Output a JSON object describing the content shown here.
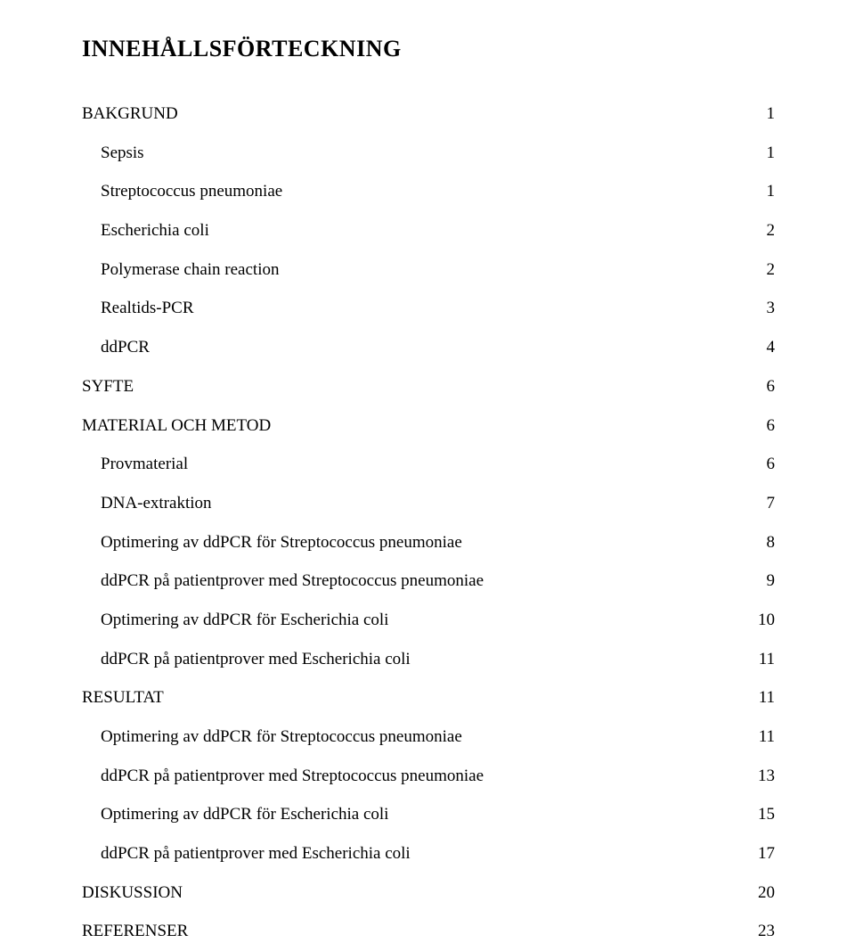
{
  "title": "INNEHÅLLSFÖRTECKNING",
  "toc": {
    "entries": [
      {
        "label": "BAKGRUND",
        "page": "1",
        "level": 1
      },
      {
        "label": "Sepsis",
        "page": "1",
        "level": 2
      },
      {
        "label": "Streptococcus pneumoniae",
        "page": "1",
        "level": 2
      },
      {
        "label": "Escherichia coli",
        "page": "2",
        "level": 2
      },
      {
        "label": "Polymerase chain reaction",
        "page": "2",
        "level": 2
      },
      {
        "label": "Realtids-PCR",
        "page": "3",
        "level": 2
      },
      {
        "label": "ddPCR",
        "page": "4",
        "level": 2
      },
      {
        "label": "SYFTE",
        "page": "6",
        "level": 1
      },
      {
        "label": "MATERIAL OCH METOD",
        "page": "6",
        "level": 1
      },
      {
        "label": "Provmaterial",
        "page": "6",
        "level": 2
      },
      {
        "label": "DNA-extraktion",
        "page": "7",
        "level": 2
      },
      {
        "label": "Optimering av ddPCR för Streptococcus pneumoniae",
        "page": "8",
        "level": 2
      },
      {
        "label": "ddPCR på patientprover med Streptococcus pneumoniae",
        "page": "9",
        "level": 2
      },
      {
        "label": "Optimering av ddPCR för Escherichia coli",
        "page": "10",
        "level": 2
      },
      {
        "label": "ddPCR på patientprover med Escherichia coli",
        "page": "11",
        "level": 2
      },
      {
        "label": "RESULTAT",
        "page": "11",
        "level": 1
      },
      {
        "label": "Optimering av ddPCR för Streptococcus pneumoniae",
        "page": "11",
        "level": 2
      },
      {
        "label": "ddPCR på patientprover med Streptococcus pneumoniae",
        "page": "13",
        "level": 2
      },
      {
        "label": "Optimering av ddPCR för Escherichia coli",
        "page": "15",
        "level": 2
      },
      {
        "label": "ddPCR på patientprover med Escherichia coli",
        "page": "17",
        "level": 2
      },
      {
        "label": "DISKUSSION",
        "page": "20",
        "level": 1
      },
      {
        "label": "REFERENSER",
        "page": "23",
        "level": 1
      }
    ]
  }
}
